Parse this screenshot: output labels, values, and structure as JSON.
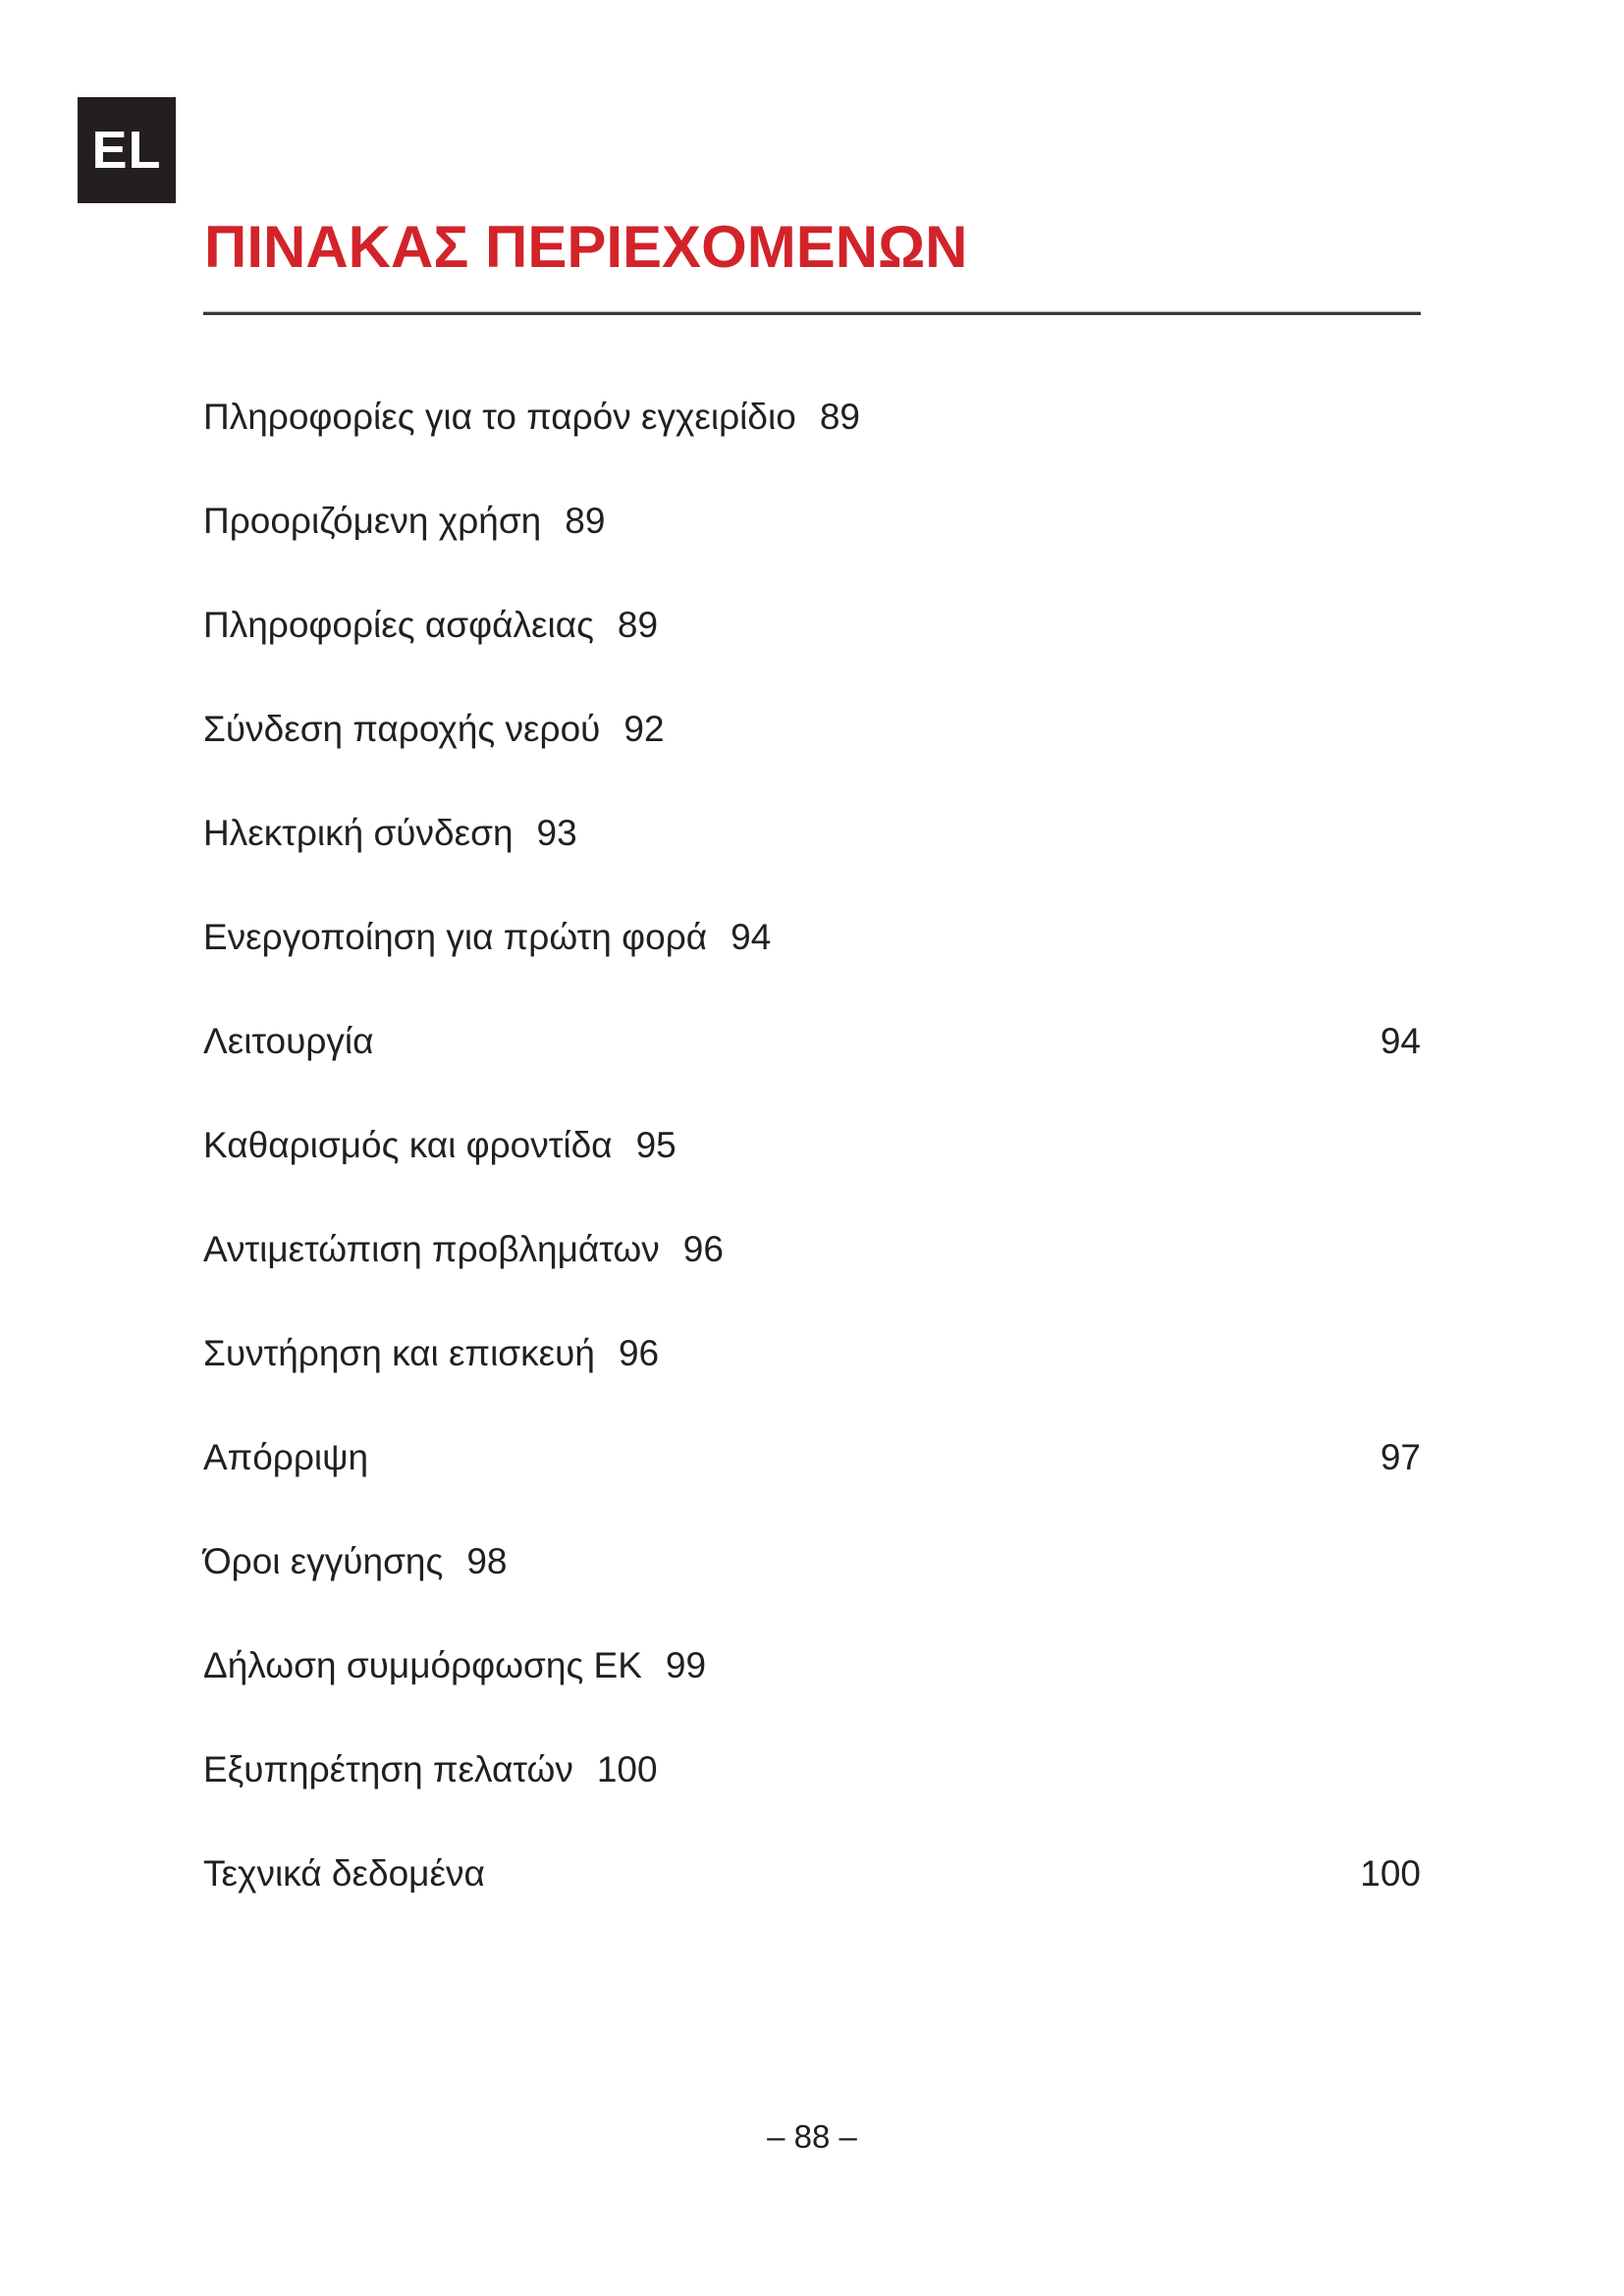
{
  "page": {
    "language_badge": "EL",
    "title": "ΠΙΝΑΚΑΣ ΠΕΡΙΕΧΟΜΕΝΩΝ",
    "footer": "– 88 –",
    "accent_color": "#d2232a",
    "badge_color": "#231f20"
  },
  "toc": {
    "entries": [
      {
        "label": "Πληροφορίες για το παρόν εγχειρίδιο",
        "page": "89",
        "page_align": "inline"
      },
      {
        "label": "Προοριζόμενη χρήση",
        "page": "89",
        "page_align": "inline"
      },
      {
        "label": "Πληροφορίες ασφάλειας",
        "page": "89",
        "page_align": "inline"
      },
      {
        "label": "Σύνδεση παροχής νερού",
        "page": "92",
        "page_align": "inline"
      },
      {
        "label": "Ηλεκτρική σύνδεση",
        "page": "93",
        "page_align": "inline"
      },
      {
        "label": "Ενεργοποίηση για πρώτη φορά",
        "page": "94",
        "page_align": "inline"
      },
      {
        "label": "Λειτουργία",
        "page": "94",
        "page_align": "right"
      },
      {
        "label": "Καθαρισμός και φροντίδα",
        "page": "95",
        "page_align": "inline"
      },
      {
        "label": "Αντιμετώπιση προβλημάτων",
        "page": "96",
        "page_align": "inline"
      },
      {
        "label": "Συντήρηση και επισκευή",
        "page": "96",
        "page_align": "inline"
      },
      {
        "label": "Απόρριψη",
        "page": "97",
        "page_align": "right"
      },
      {
        "label": "Όροι εγγύησης",
        "page": "98",
        "page_align": "inline"
      },
      {
        "label": "Δήλωση συμμόρφωσης ΕΚ",
        "page": "99",
        "page_align": "inline"
      },
      {
        "label": "Εξυπηρέτηση πελατών",
        "page": "100",
        "page_align": "inline"
      },
      {
        "label": "Τεχνικά δεδομένα",
        "page": "100",
        "page_align": "right"
      }
    ]
  }
}
